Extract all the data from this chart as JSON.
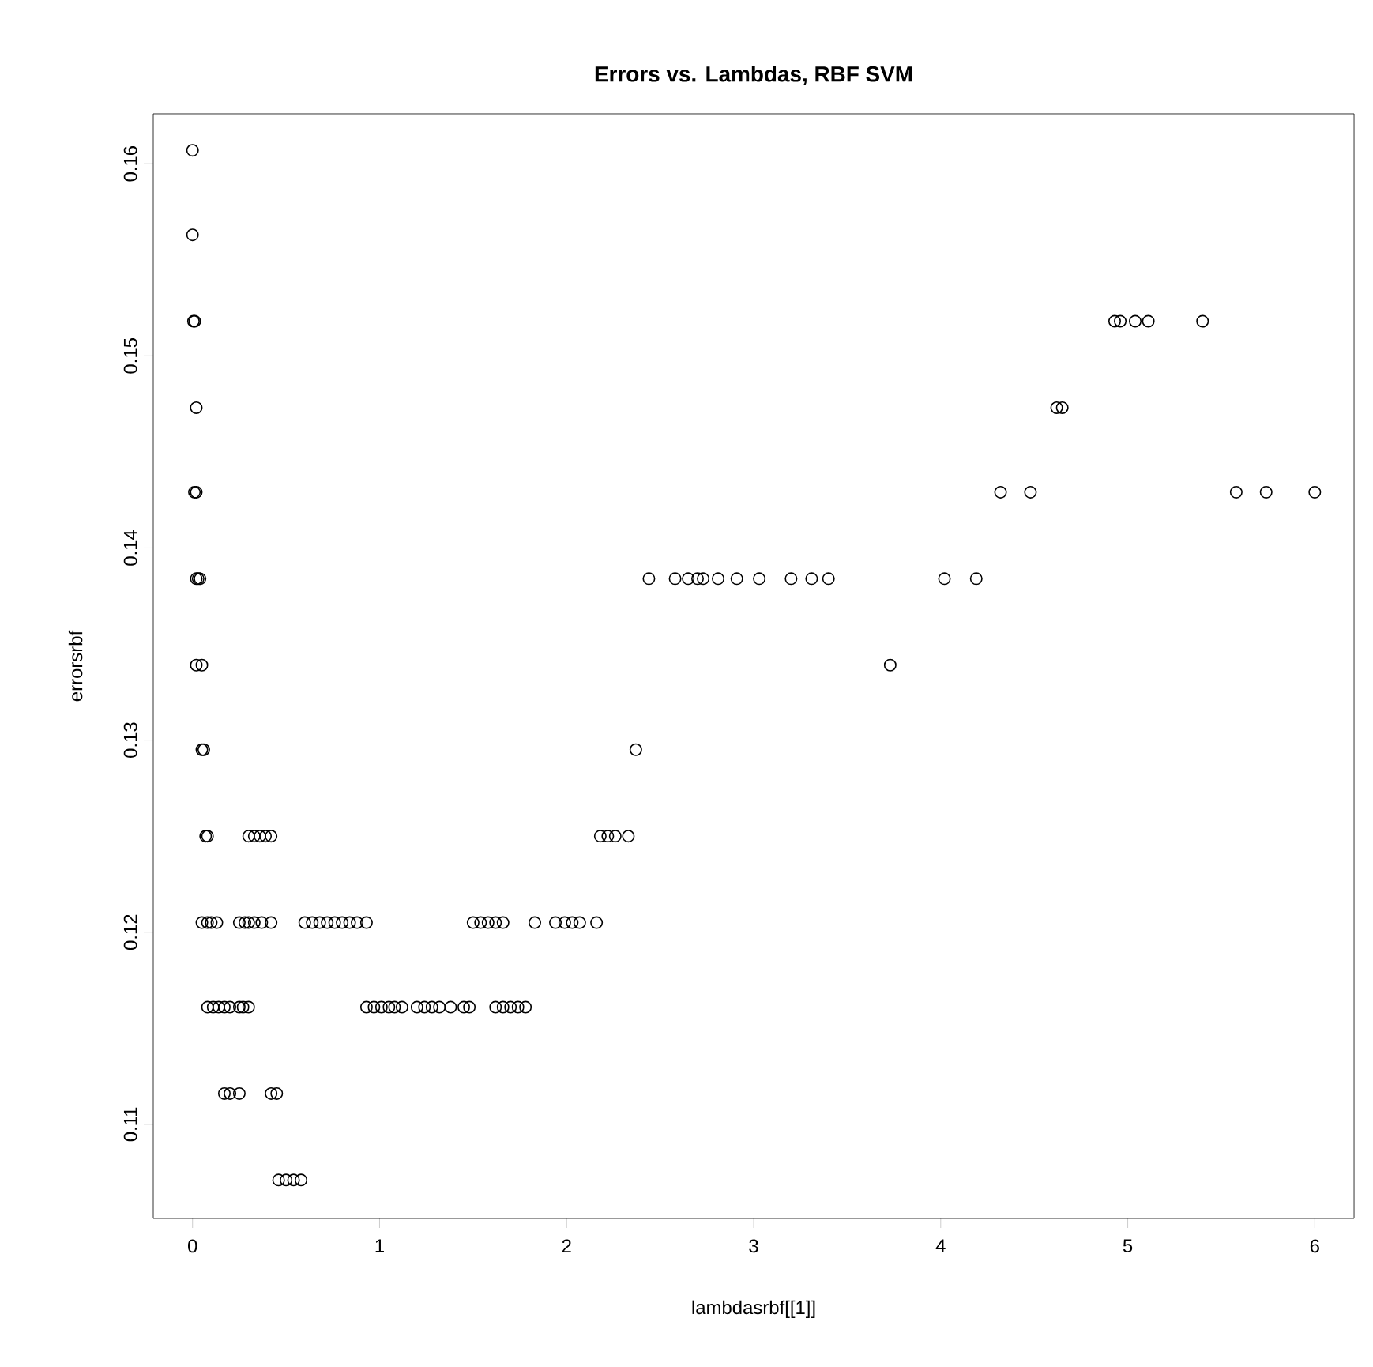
{
  "chart_data": {
    "type": "scatter",
    "title": "Errors vs. Lambdas, RBF SVM",
    "xlabel": "lambdasrbf[[1]]",
    "ylabel": "errorsrbf",
    "x": [
      0.0,
      0.0,
      0.005,
      0.012,
      0.02,
      0.01,
      0.02,
      0.02,
      0.03,
      0.04,
      2.44,
      2.58,
      2.65,
      2.7,
      2.73,
      2.81,
      2.91,
      3.03,
      3.2,
      3.31,
      3.4,
      4.02,
      4.19,
      0.02,
      0.05,
      3.73,
      0.05,
      0.06,
      2.37,
      0.07,
      0.08,
      0.3,
      0.33,
      0.36,
      0.39,
      0.42,
      2.18,
      2.22,
      2.26,
      2.33,
      0.05,
      0.08,
      0.1,
      0.13,
      0.25,
      0.28,
      0.3,
      0.33,
      0.37,
      0.42,
      0.6,
      0.64,
      0.68,
      0.72,
      0.76,
      0.8,
      0.84,
      0.88,
      0.93,
      1.5,
      1.54,
      1.58,
      1.62,
      1.66,
      1.83,
      1.94,
      1.99,
      2.03,
      2.07,
      2.16,
      0.08,
      0.11,
      0.14,
      0.17,
      0.2,
      0.25,
      0.27,
      0.3,
      0.93,
      0.97,
      1.01,
      1.05,
      1.08,
      1.12,
      1.2,
      1.24,
      1.28,
      1.32,
      1.38,
      1.45,
      1.48,
      1.62,
      1.66,
      1.7,
      1.74,
      1.78,
      0.17,
      0.2,
      0.25,
      0.42,
      0.45,
      0.46,
      0.5,
      0.54,
      0.58,
      4.93,
      4.96,
      5.04,
      5.11,
      5.4,
      4.62,
      4.65,
      4.32,
      4.48,
      5.58,
      5.74,
      6.0
    ],
    "values": [
      0.1607,
      0.1563,
      0.1518,
      0.1518,
      0.1473,
      0.1429,
      0.1429,
      0.1384,
      0.1384,
      0.1384,
      0.1384,
      0.1384,
      0.1384,
      0.1384,
      0.1384,
      0.1384,
      0.1384,
      0.1384,
      0.1384,
      0.1384,
      0.1384,
      0.1384,
      0.1384,
      0.1339,
      0.1339,
      0.1339,
      0.1295,
      0.1295,
      0.1295,
      0.125,
      0.125,
      0.125,
      0.125,
      0.125,
      0.125,
      0.125,
      0.125,
      0.125,
      0.125,
      0.125,
      0.1205,
      0.1205,
      0.1205,
      0.1205,
      0.1205,
      0.1205,
      0.1205,
      0.1205,
      0.1205,
      0.1205,
      0.1205,
      0.1205,
      0.1205,
      0.1205,
      0.1205,
      0.1205,
      0.1205,
      0.1205,
      0.1205,
      0.1205,
      0.1205,
      0.1205,
      0.1205,
      0.1205,
      0.1205,
      0.1205,
      0.1205,
      0.1205,
      0.1205,
      0.1205,
      0.1161,
      0.1161,
      0.1161,
      0.1161,
      0.1161,
      0.1161,
      0.1161,
      0.1161,
      0.1161,
      0.1161,
      0.1161,
      0.1161,
      0.1161,
      0.1161,
      0.1161,
      0.1161,
      0.1161,
      0.1161,
      0.1161,
      0.1161,
      0.1161,
      0.1161,
      0.1161,
      0.1161,
      0.1161,
      0.1161,
      0.1116,
      0.1116,
      0.1116,
      0.1116,
      0.1116,
      0.1071,
      0.1071,
      0.1071,
      0.1071,
      0.1518,
      0.1518,
      0.1518,
      0.1518,
      0.1518,
      0.1473,
      0.1473,
      0.1429,
      0.1429,
      0.1429,
      0.1429,
      0.1429
    ],
    "color": "#000000",
    "marker": "circle",
    "xlim": [
      -0.21,
      6.21
    ],
    "ylim": [
      0.1051,
      0.1626
    ],
    "xticks": [
      0,
      1,
      2,
      3,
      4,
      5,
      6
    ],
    "yticks": [
      0.11,
      0.12,
      0.13,
      0.14,
      0.15,
      0.16
    ]
  }
}
